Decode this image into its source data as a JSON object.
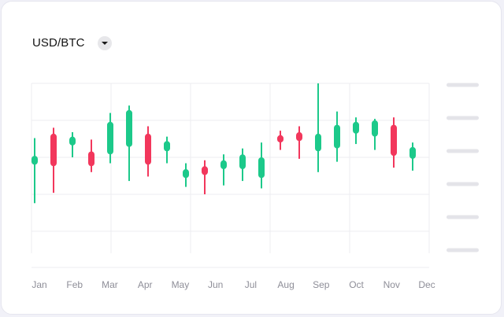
{
  "header": {
    "title": "USD/BTC"
  },
  "colors": {
    "up": "#1cc98a",
    "down": "#f2375c",
    "grid": "#ececf1",
    "placeholder": "#e4e4e9"
  },
  "chart_data": {
    "type": "candlestick",
    "title": "USD/BTC",
    "xlabel": "",
    "ylabel": "",
    "ylim": [
      0,
      100
    ],
    "grid": true,
    "x_tick_labels": [
      "Jan",
      "Feb",
      "Mar",
      "Apr",
      "May",
      "Jun",
      "Jul",
      "Aug",
      "Sep",
      "Oct",
      "Nov",
      "Dec"
    ],
    "y_tick_labels_visible": false,
    "candles": [
      {
        "open": 45,
        "close": 51,
        "high": 63,
        "low": 19
      },
      {
        "open": 66,
        "close": 44,
        "high": 70,
        "low": 26
      },
      {
        "open": 58,
        "close": 64,
        "high": 67,
        "low": 50
      },
      {
        "open": 54,
        "close": 44,
        "high": 62,
        "low": 40
      },
      {
        "open": 52,
        "close": 74,
        "high": 80,
        "low": 46
      },
      {
        "open": 57,
        "close": 82,
        "high": 85,
        "low": 34
      },
      {
        "open": 66,
        "close": 45,
        "high": 71,
        "low": 37
      },
      {
        "open": 54,
        "close": 61,
        "high": 64,
        "low": 46
      },
      {
        "open": 36,
        "close": 42,
        "high": 46,
        "low": 30
      },
      {
        "open": 44,
        "close": 38,
        "high": 48,
        "low": 25
      },
      {
        "open": 42,
        "close": 48,
        "high": 52,
        "low": 31
      },
      {
        "open": 42,
        "close": 52,
        "high": 56,
        "low": 34
      },
      {
        "open": 36,
        "close": 50,
        "high": 60,
        "low": 29
      },
      {
        "open": 65,
        "close": 60,
        "high": 68,
        "low": 55
      },
      {
        "open": 67,
        "close": 61,
        "high": 71,
        "low": 49
      },
      {
        "open": 54,
        "close": 66,
        "high": 100,
        "low": 40
      },
      {
        "open": 56,
        "close": 72,
        "high": 81,
        "low": 47
      },
      {
        "open": 66,
        "close": 74,
        "high": 77,
        "low": 59
      },
      {
        "open": 64,
        "close": 75,
        "high": 76,
        "low": 55
      },
      {
        "open": 72,
        "close": 51,
        "high": 77,
        "low": 43
      },
      {
        "open": 49,
        "close": 57,
        "high": 60,
        "low": 41
      }
    ]
  }
}
